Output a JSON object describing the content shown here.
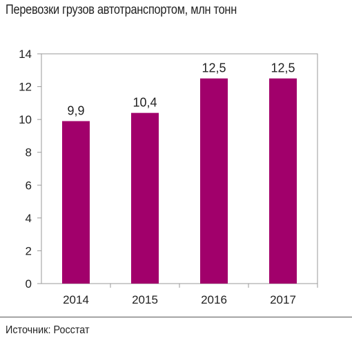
{
  "chart_data": {
    "type": "bar",
    "title": "Перевозки грузов автотранспортом, млн тонн",
    "categories": [
      "2014",
      "2015",
      "2016",
      "2017"
    ],
    "values": [
      9.9,
      10.4,
      12.5,
      12.5
    ],
    "value_labels": [
      "9,9",
      "10,4",
      "12,5",
      "12,5"
    ],
    "ylim": [
      0,
      14
    ],
    "yticks": [
      0,
      2,
      4,
      6,
      8,
      10,
      12,
      14
    ],
    "xlabel": "",
    "ylabel": "",
    "grid": false,
    "bar_color": "#a1006b"
  },
  "footer": {
    "source": "Источник: Росстат"
  }
}
